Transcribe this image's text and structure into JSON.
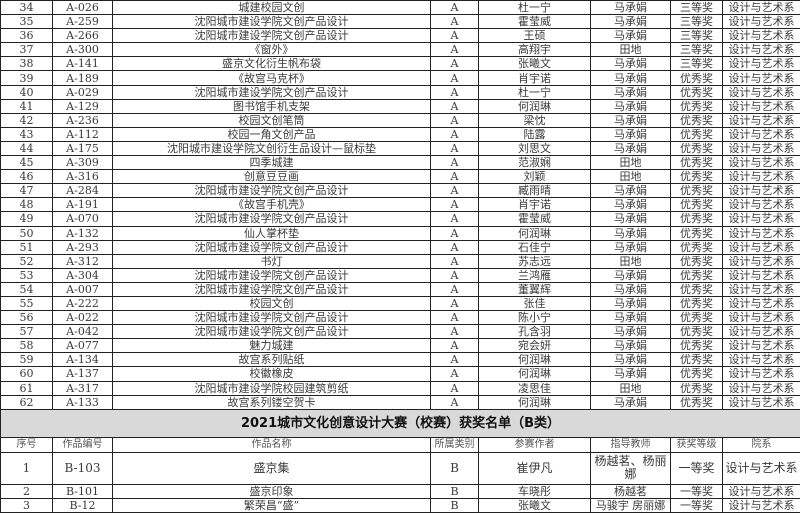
{
  "a_rows": [
    [
      "34",
      "A-026",
      "城建校园文创",
      "A",
      "杜一宁",
      "马承娟",
      "三等奖",
      "设计与艺术系"
    ],
    [
      "35",
      "A-259",
      "沈阳城市建设学院文创产品设计",
      "A",
      "霍莹威",
      "马承娟",
      "三等奖",
      "设计与艺术系"
    ],
    [
      "36",
      "A-266",
      "沈阳城市建设学院文创产品设计",
      "A",
      "王硕",
      "马承娟",
      "三等奖",
      "设计与艺术系"
    ],
    [
      "37",
      "A-300",
      "《窗外》",
      "A",
      "高翔宇",
      "田地",
      "三等奖",
      "设计与艺术系"
    ],
    [
      "38",
      "A-141",
      "盛京文化衍生帆布袋",
      "A",
      "张曦文",
      "马承娟",
      "三等奖",
      "设计与艺术系"
    ],
    [
      "39",
      "A-189",
      "《故宫马克杯》",
      "A",
      "肖宇诺",
      "马承娟",
      "优秀奖",
      "设计与艺术系"
    ],
    [
      "40",
      "A-029",
      "沈阳城市建设学院文创产品设计",
      "A",
      "杜一宁",
      "马承娟",
      "优秀奖",
      "设计与艺术系"
    ],
    [
      "41",
      "A-129",
      "图书馆手机支架",
      "A",
      "何润琳",
      "马承娟",
      "优秀奖",
      "设计与艺术系"
    ],
    [
      "42",
      "A-236",
      "校园文创笔筒",
      "A",
      "梁忱",
      "马承娟",
      "优秀奖",
      "设计与艺术系"
    ],
    [
      "43",
      "A-112",
      "校园一角文创产品",
      "A",
      "陆露",
      "马承娟",
      "优秀奖",
      "设计与艺术系"
    ],
    [
      "44",
      "A-175",
      "沈阳城市建设学院文创衍生品设计—鼠标垫",
      "A",
      "刘思文",
      "马承娟",
      "优秀奖",
      "设计与艺术系"
    ],
    [
      "45",
      "A-309",
      "四季城建",
      "A",
      "范淑娴",
      "田地",
      "优秀奖",
      "设计与艺术系"
    ],
    [
      "46",
      "A-316",
      "创意豆豆画",
      "A",
      "刘颖",
      "田地",
      "优秀奖",
      "设计与艺术系"
    ],
    [
      "47",
      "A-284",
      "沈阳城市建设学院文创产品设计",
      "A",
      "臧雨晴",
      "马承娟",
      "优秀奖",
      "设计与艺术系"
    ],
    [
      "48",
      "A-191",
      "《故宫手机壳》",
      "A",
      "肖宇诺",
      "马承娟",
      "优秀奖",
      "设计与艺术系"
    ],
    [
      "49",
      "A-070",
      "沈阳城市建设学院文创产品设计",
      "A",
      "霍莹威",
      "马承娟",
      "优秀奖",
      "设计与艺术系"
    ],
    [
      "50",
      "A-132",
      "仙人掌杯垫",
      "A",
      "何润琳",
      "马承娟",
      "优秀奖",
      "设计与艺术系"
    ],
    [
      "51",
      "A-293",
      "沈阳城市建设学院文创产品设计",
      "A",
      "石佳宁",
      "马承娟",
      "优秀奖",
      "设计与艺术系"
    ],
    [
      "52",
      "A-312",
      "书灯",
      "A",
      "苏志远",
      "田地",
      "优秀奖",
      "设计与艺术系"
    ],
    [
      "53",
      "A-304",
      "沈阳城市建设学院文创产品设计",
      "A",
      "兰鸿雁",
      "马承娟",
      "优秀奖",
      "设计与艺术系"
    ],
    [
      "54",
      "A-007",
      "沈阳城市建设学院文创产品设计",
      "A",
      "董翼辉",
      "马承娟",
      "优秀奖",
      "设计与艺术系"
    ],
    [
      "55",
      "A-222",
      "校园文创",
      "A",
      "张佳",
      "马承娟",
      "优秀奖",
      "设计与艺术系"
    ],
    [
      "56",
      "A-022",
      "沈阳城市建设学院文创产品设计",
      "A",
      "陈小宁",
      "马承娟",
      "优秀奖",
      "设计与艺术系"
    ],
    [
      "57",
      "A-042",
      "沈阳城市建设学院文创产品设计",
      "A",
      "孔含羽",
      "马承娟",
      "优秀奖",
      "设计与艺术系"
    ],
    [
      "58",
      "A-077",
      "魅力城建",
      "A",
      "宛会妍",
      "马承娟",
      "优秀奖",
      "设计与艺术系"
    ],
    [
      "59",
      "A-134",
      "故宫系列贴纸",
      "A",
      "何润琳",
      "马承娟",
      "优秀奖",
      "设计与艺术系"
    ],
    [
      "60",
      "A-137",
      "校徽橡皮",
      "A",
      "何润琳",
      "马承娟",
      "优秀奖",
      "设计与艺术系"
    ],
    [
      "61",
      "A-317",
      "沈阳城市建设学院校园建筑剪纸",
      "A",
      "凌思佳",
      "田地",
      "优秀奖",
      "设计与艺术系"
    ],
    [
      "62",
      "A-133",
      "故宫系列镂空贺卡",
      "A",
      "何润琳",
      "马承娟",
      "优秀奖",
      "设计与艺术系"
    ]
  ],
  "b_section": {
    "title": "2021城市文化创意设计大赛（校赛）获奖名单（B类）",
    "headers": [
      "序号",
      "作品编号",
      "作品名称",
      "所属类别",
      "参赛作者",
      "指导教师",
      "获奖等级",
      "院系"
    ],
    "rows": [
      [
        "1",
        "B-103",
        "盛京集",
        "B",
        "崔伊凡",
        "杨越茗、杨丽娜",
        "一等奖",
        "设计与艺术系"
      ],
      [
        "2",
        "B-101",
        "盛京印象",
        "B",
        "车晓彤",
        "杨越茗",
        "一等奖",
        "设计与艺术系"
      ],
      [
        "3",
        "B-12",
        "繁荣昌“盛”",
        "B",
        "张曦文",
        "马骏宇 房丽娜",
        "一等奖",
        "设计与艺术系"
      ]
    ]
  }
}
